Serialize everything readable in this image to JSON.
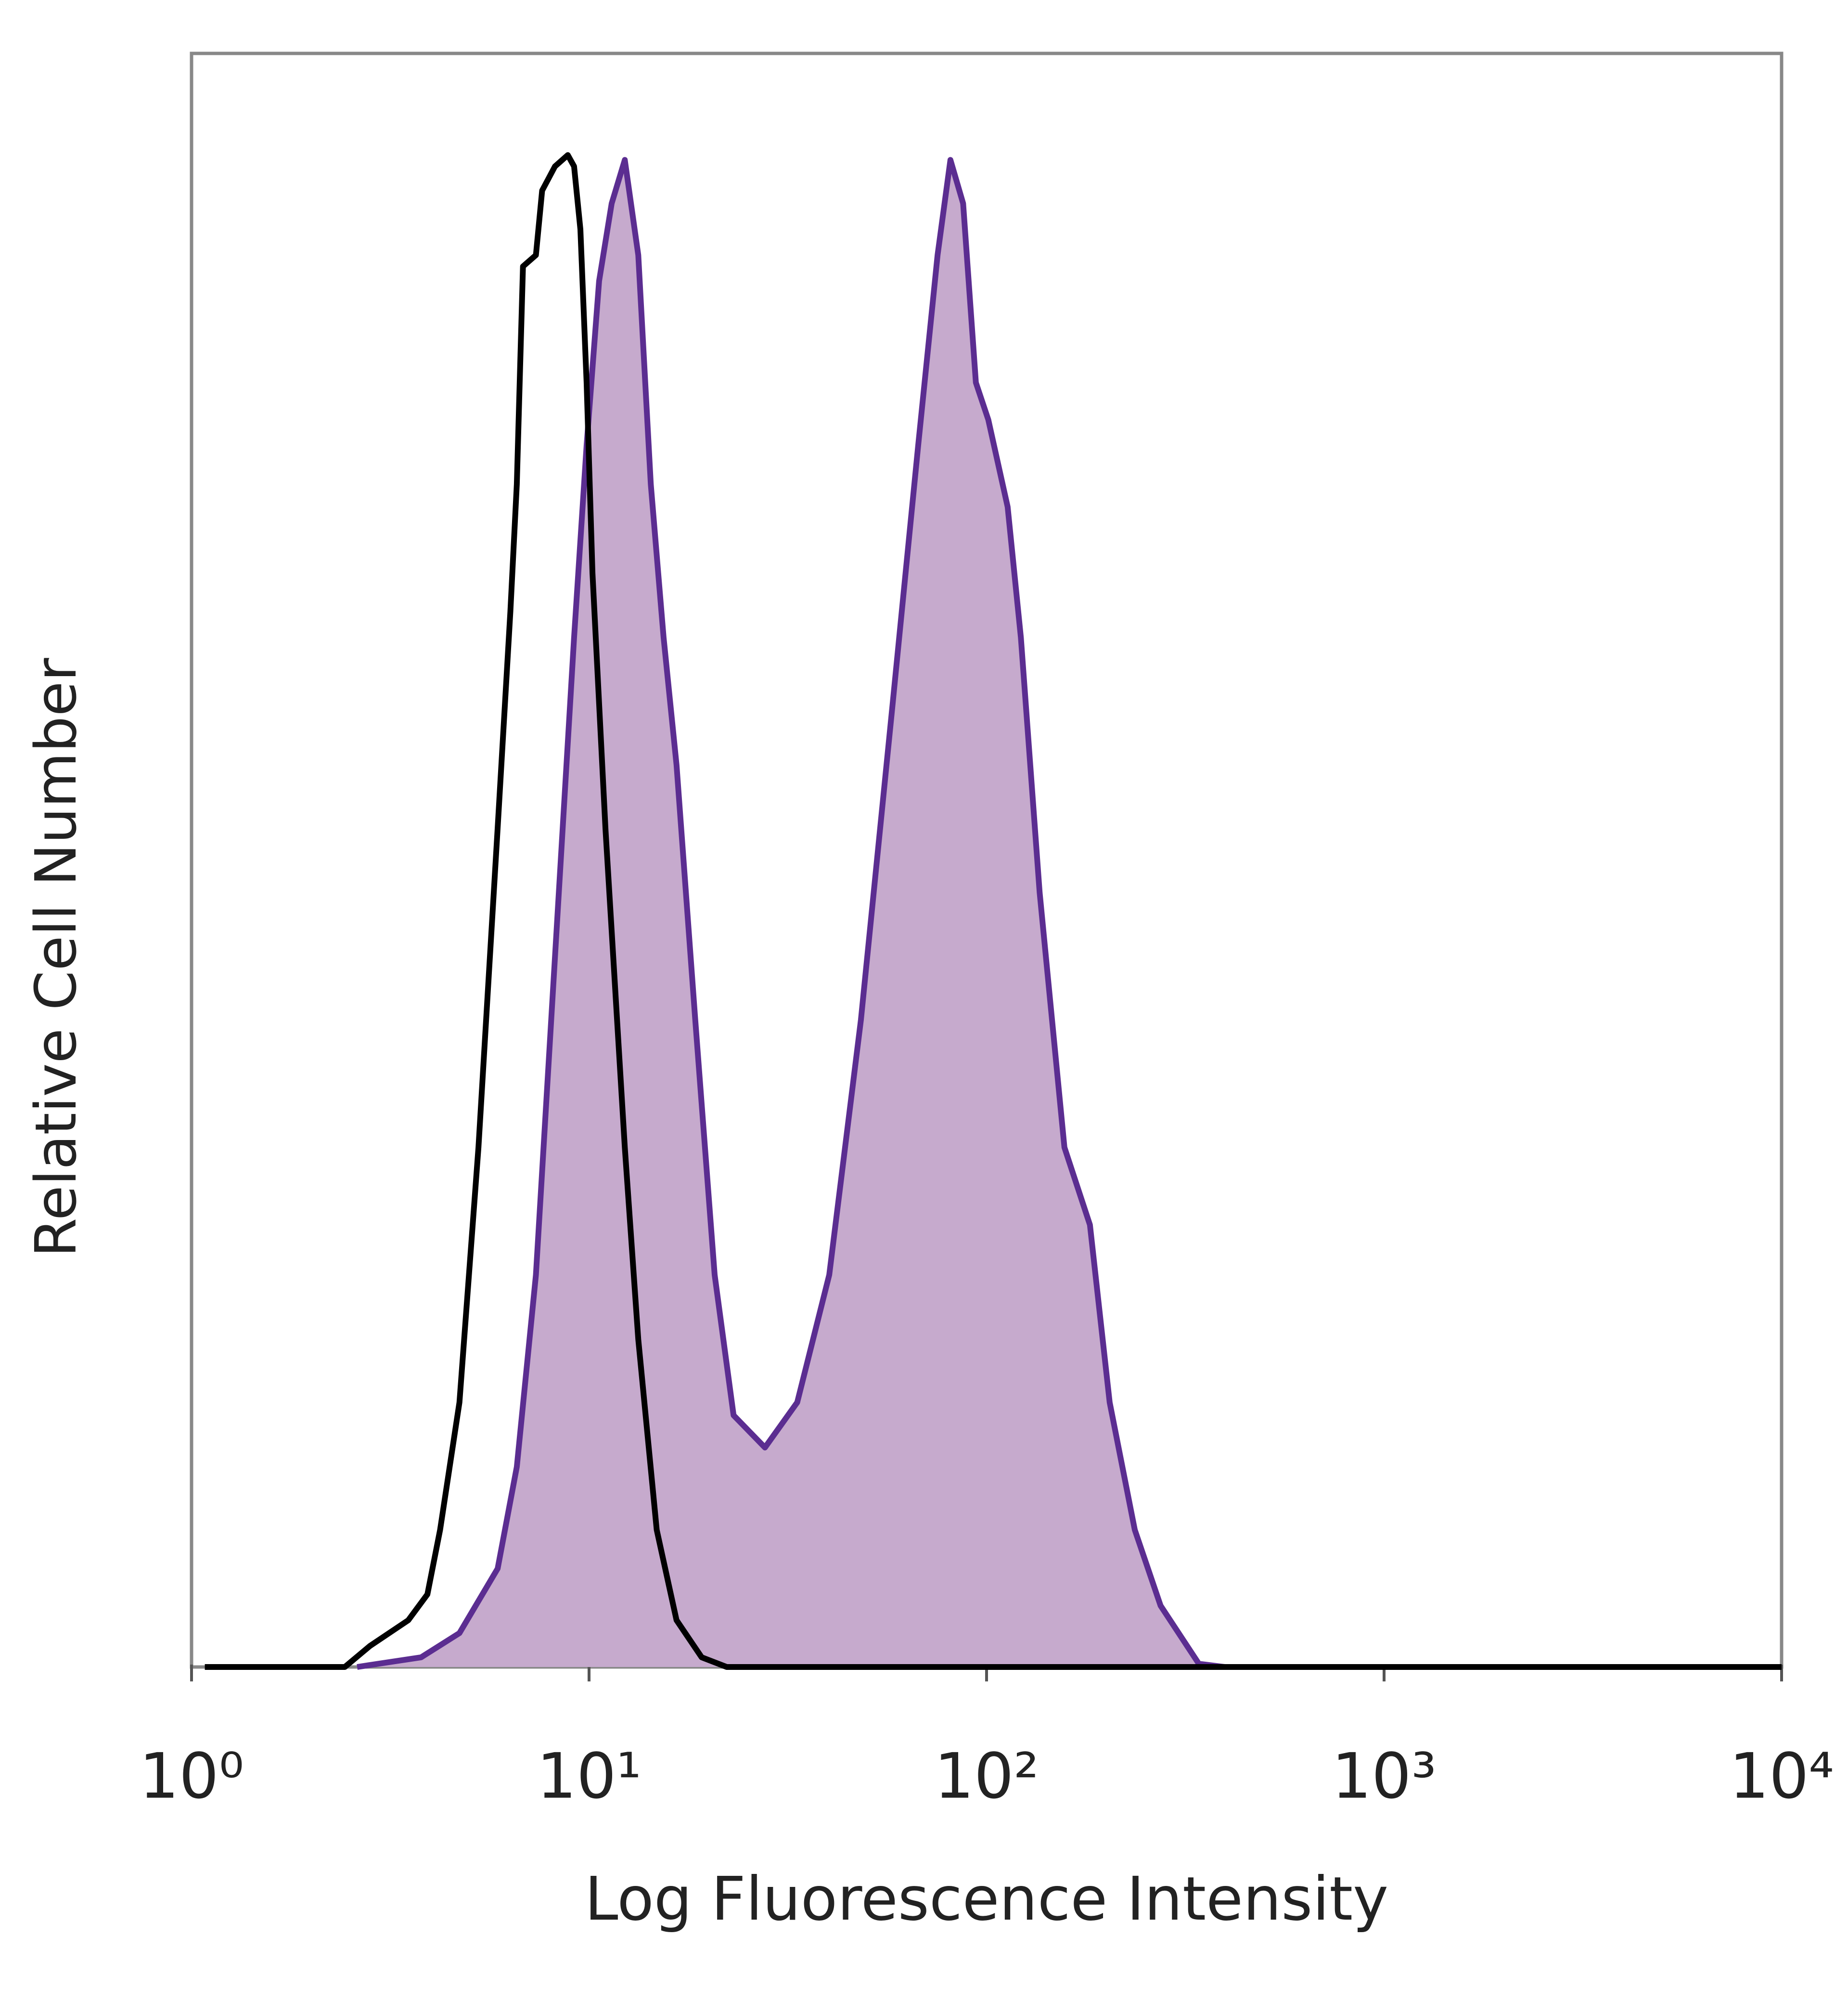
{
  "chart_data": {
    "type": "line",
    "xlabel": "Log Fluorescence Intensity",
    "ylabel": "Relative Cell Number",
    "xscale": "log",
    "xlim": [
      1,
      10000
    ],
    "xticks": [
      {
        "value": 1,
        "label": "10⁰"
      },
      {
        "value": 10,
        "label": "10¹"
      },
      {
        "value": 100,
        "label": "10²"
      },
      {
        "value": 1000,
        "label": "10³"
      },
      {
        "value": 10000,
        "label": "10⁴"
      }
    ],
    "ylim": [
      0,
      100
    ],
    "series": [
      {
        "color": "#5b2d91",
        "fill": "#c6aacd",
        "x": [
          2.61,
          3.78,
          4.72,
          5.89,
          6.58,
          7.35,
          8.21,
          9.17,
          9.86,
          10.6,
          11.4,
          12.3,
          13.3,
          14.3,
          15.4,
          16.6,
          18.5,
          20.7,
          23.1,
          27.7,
          33.4,
          40.2,
          48.3,
          58.1,
          67.3,
          75.3,
          81.1,
          87.3,
          94.0,
          101,
          113,
          122,
          136,
          157,
          182,
          204,
          236,
          274,
          342,
          397,
          10000
        ],
        "values": [
          0,
          0.6,
          2.1,
          6.1,
          12.4,
          24.3,
          44.0,
          63.8,
          75.7,
          85.9,
          90.7,
          93.4,
          87.5,
          73.3,
          63.8,
          55.9,
          40.1,
          24.3,
          15.6,
          13.6,
          16.4,
          24.3,
          40.1,
          59.8,
          75.7,
          87.5,
          93.4,
          90.7,
          79.6,
          77.3,
          71.9,
          63.8,
          48.0,
          32.2,
          27.4,
          16.4,
          8.5,
          3.8,
          0.2,
          0,
          0
        ]
      },
      {
        "color": "#000000",
        "x": [
          1.08,
          2.43,
          2.81,
          3.51,
          3.92,
          4.22,
          4.72,
          5.27,
          5.89,
          6.34,
          6.58,
          6.82,
          7.35,
          7.62,
          8.21,
          8.84,
          9.17,
          9.51,
          9.86,
          10.2,
          11.0,
          12.3,
          13.3,
          14.8,
          16.6,
          19.2,
          22.2,
          10000
        ],
        "values": [
          0,
          0,
          1.3,
          2.9,
          4.5,
          8.5,
          16.4,
          32.2,
          52.0,
          65.4,
          73.3,
          86.8,
          87.5,
          91.5,
          93.0,
          93.7,
          93.0,
          89.1,
          79.6,
          67.8,
          51.9,
          32.2,
          20.3,
          8.5,
          2.9,
          0.6,
          0,
          0
        ]
      }
    ]
  }
}
